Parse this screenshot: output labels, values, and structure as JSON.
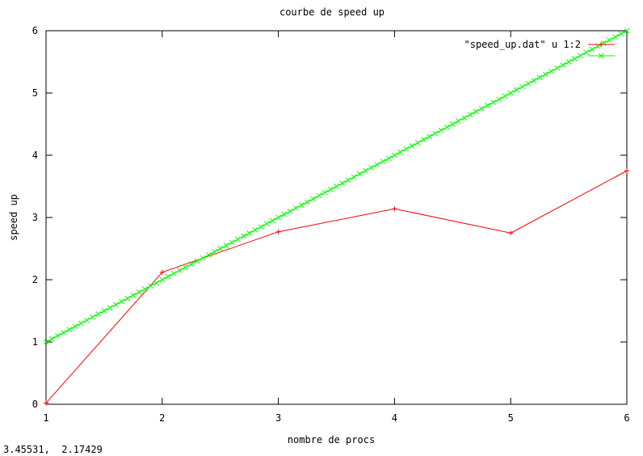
{
  "window": {
    "status_readout": "3.45531,  2.17429"
  },
  "chart_data": {
    "type": "line",
    "title": "courbe de speed up",
    "xlabel": "nombre de procs",
    "ylabel": "speed up",
    "xlim": [
      1,
      6
    ],
    "ylim": [
      0,
      6
    ],
    "xticks": [
      1,
      2,
      3,
      4,
      5,
      6
    ],
    "yticks": [
      0,
      1,
      2,
      3,
      4,
      5,
      6
    ],
    "grid": false,
    "legend_position": "top-right",
    "series": [
      {
        "name": "\"speed_up.dat\" u 1:2",
        "color": "#ff0000",
        "marker": "plus",
        "x": [
          1,
          2,
          3,
          4,
          5,
          6
        ],
        "y": [
          0.02,
          2.12,
          2.77,
          3.14,
          2.75,
          3.75
        ]
      },
      {
        "name": "",
        "color": "#00ff00",
        "marker": "cross",
        "x": [
          1,
          6
        ],
        "y": [
          1,
          6
        ]
      }
    ]
  }
}
